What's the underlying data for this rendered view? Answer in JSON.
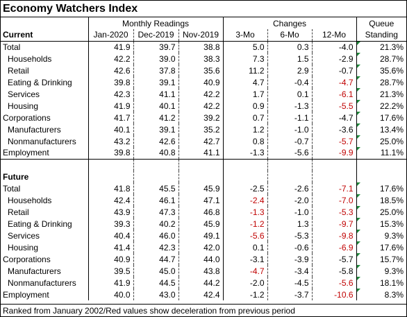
{
  "title": "Economy Watchers Index",
  "headers": {
    "group_monthly": "Monthly Readings",
    "group_changes": "Changes",
    "group_queue": "Queue",
    "section_current": "Current",
    "section_future": "Future",
    "columns": [
      "Jan-2020",
      "Dec-2019",
      "Nov-2019",
      "3-Mo",
      "6-Mo",
      "12-Mo",
      "Standing"
    ]
  },
  "current_rows": [
    {
      "label": "Total",
      "indent": false,
      "vals": [
        "41.9",
        "39.7",
        "38.8",
        "5.0",
        "0.3",
        "-4.0"
      ],
      "red": [
        false,
        false,
        false
      ],
      "queue": "21.3%"
    },
    {
      "label": "Households",
      "indent": true,
      "vals": [
        "42.2",
        "39.0",
        "38.3",
        "7.3",
        "1.5",
        "-2.9"
      ],
      "red": [
        false,
        false,
        false
      ],
      "queue": "28.7%"
    },
    {
      "label": "Retail",
      "indent": true,
      "vals": [
        "42.6",
        "37.8",
        "35.6",
        "11.2",
        "2.9",
        "-0.7"
      ],
      "red": [
        false,
        false,
        false
      ],
      "queue": "35.6%"
    },
    {
      "label": "Eating & Drinking",
      "indent": true,
      "vals": [
        "39.8",
        "39.1",
        "40.9",
        "4.7",
        "-0.4",
        "-4.7"
      ],
      "red": [
        false,
        false,
        true
      ],
      "queue": "28.7%"
    },
    {
      "label": "Services",
      "indent": true,
      "vals": [
        "42.3",
        "41.1",
        "42.2",
        "1.7",
        "0.1",
        "-6.1"
      ],
      "red": [
        false,
        false,
        true
      ],
      "queue": "21.3%"
    },
    {
      "label": "Housing",
      "indent": true,
      "vals": [
        "41.9",
        "40.1",
        "42.2",
        "0.9",
        "-1.3",
        "-5.5"
      ],
      "red": [
        false,
        false,
        true
      ],
      "queue": "22.2%"
    },
    {
      "label": "Corporations",
      "indent": false,
      "vals": [
        "41.7",
        "41.2",
        "39.2",
        "0.7",
        "-1.1",
        "-4.7"
      ],
      "red": [
        false,
        false,
        false
      ],
      "queue": "17.6%"
    },
    {
      "label": "Manufacturers",
      "indent": true,
      "vals": [
        "40.1",
        "39.1",
        "35.2",
        "1.2",
        "-1.0",
        "-3.6"
      ],
      "red": [
        false,
        false,
        false
      ],
      "queue": "13.4%"
    },
    {
      "label": "Nonmanufacturers",
      "indent": true,
      "vals": [
        "43.2",
        "42.6",
        "42.7",
        "0.8",
        "-0.7",
        "-5.7"
      ],
      "red": [
        false,
        false,
        true
      ],
      "queue": "25.0%"
    },
    {
      "label": "Employment",
      "indent": false,
      "vals": [
        "39.8",
        "40.8",
        "41.1",
        "-1.3",
        "-5.6",
        "-9.9"
      ],
      "red": [
        false,
        false,
        true
      ],
      "queue": "11.1%"
    }
  ],
  "future_rows": [
    {
      "label": "Total",
      "indent": false,
      "vals": [
        "41.8",
        "45.5",
        "45.9",
        "-2.5",
        "-2.6",
        "-7.1"
      ],
      "red": [
        false,
        false,
        true
      ],
      "queue": "17.6%"
    },
    {
      "label": "Households",
      "indent": true,
      "vals": [
        "42.4",
        "46.1",
        "47.1",
        "-2.4",
        "-2.0",
        "-7.0"
      ],
      "red": [
        true,
        false,
        true
      ],
      "queue": "18.5%"
    },
    {
      "label": "Retail",
      "indent": true,
      "vals": [
        "43.9",
        "47.3",
        "46.8",
        "-1.3",
        "-1.0",
        "-5.3"
      ],
      "red": [
        true,
        false,
        true
      ],
      "queue": "25.0%"
    },
    {
      "label": "Eating & Drinking",
      "indent": true,
      "vals": [
        "39.3",
        "40.2",
        "45.9",
        "-1.2",
        "1.3",
        "-9.7"
      ],
      "red": [
        true,
        false,
        true
      ],
      "queue": "15.3%"
    },
    {
      "label": "Services",
      "indent": true,
      "vals": [
        "40.4",
        "46.0",
        "49.1",
        "-5.6",
        "-5.3",
        "-9.8"
      ],
      "red": [
        true,
        false,
        true
      ],
      "queue": "9.3%"
    },
    {
      "label": "Housing",
      "indent": true,
      "vals": [
        "41.4",
        "42.3",
        "42.0",
        "0.1",
        "-0.6",
        "-6.9"
      ],
      "red": [
        false,
        false,
        true
      ],
      "queue": "17.6%"
    },
    {
      "label": "Corporations",
      "indent": false,
      "vals": [
        "40.9",
        "44.7",
        "44.0",
        "-3.1",
        "-3.9",
        "-5.7"
      ],
      "red": [
        false,
        false,
        false
      ],
      "queue": "15.7%"
    },
    {
      "label": "Manufacturers",
      "indent": true,
      "vals": [
        "39.5",
        "45.0",
        "43.8",
        "-4.7",
        "-3.4",
        "-5.8"
      ],
      "red": [
        true,
        false,
        false
      ],
      "queue": "9.3%"
    },
    {
      "label": "Nonmanufacturers",
      "indent": true,
      "vals": [
        "41.9",
        "44.5",
        "44.2",
        "-2.0",
        "-4.5",
        "-5.6"
      ],
      "red": [
        false,
        false,
        true
      ],
      "queue": "18.1%"
    },
    {
      "label": "Employment",
      "indent": false,
      "vals": [
        "40.0",
        "43.0",
        "42.4",
        "-1.2",
        "-3.7",
        "-10.6"
      ],
      "red": [
        false,
        false,
        true
      ],
      "queue": "8.3%"
    }
  ],
  "footer": "Ranked from January 2002/Red values show deceleration from previous period",
  "colors": {
    "negative_change": "#c00000",
    "border": "#000000",
    "marker": "#1f8a3b"
  }
}
